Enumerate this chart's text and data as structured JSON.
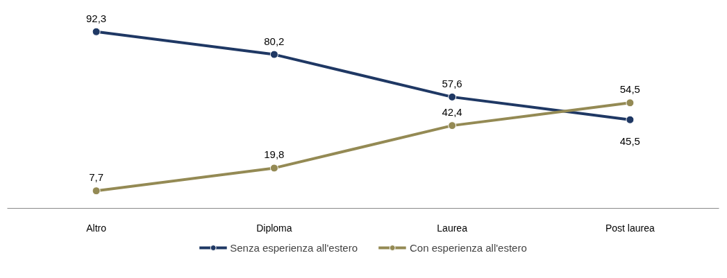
{
  "chart_data": {
    "type": "line",
    "categories": [
      "Altro",
      "Diploma",
      "Laurea",
      "Post laurea"
    ],
    "series": [
      {
        "name": "Senza esperienza all'estero",
        "color": "#1f3864",
        "values": [
          92.3,
          80.2,
          57.6,
          45.5
        ],
        "value_labels": [
          "92,3",
          "80,2",
          "57,6",
          "45,5"
        ]
      },
      {
        "name": "Con esperienza all'estero",
        "color": "#948a54",
        "values": [
          7.7,
          19.8,
          42.4,
          54.5
        ],
        "value_labels": [
          "7,7",
          "19,8",
          "42,4",
          "54,5"
        ]
      }
    ],
    "tick_labels": "x",
    "legend": "bottom",
    "marker": "circle",
    "line_style": "solid"
  }
}
